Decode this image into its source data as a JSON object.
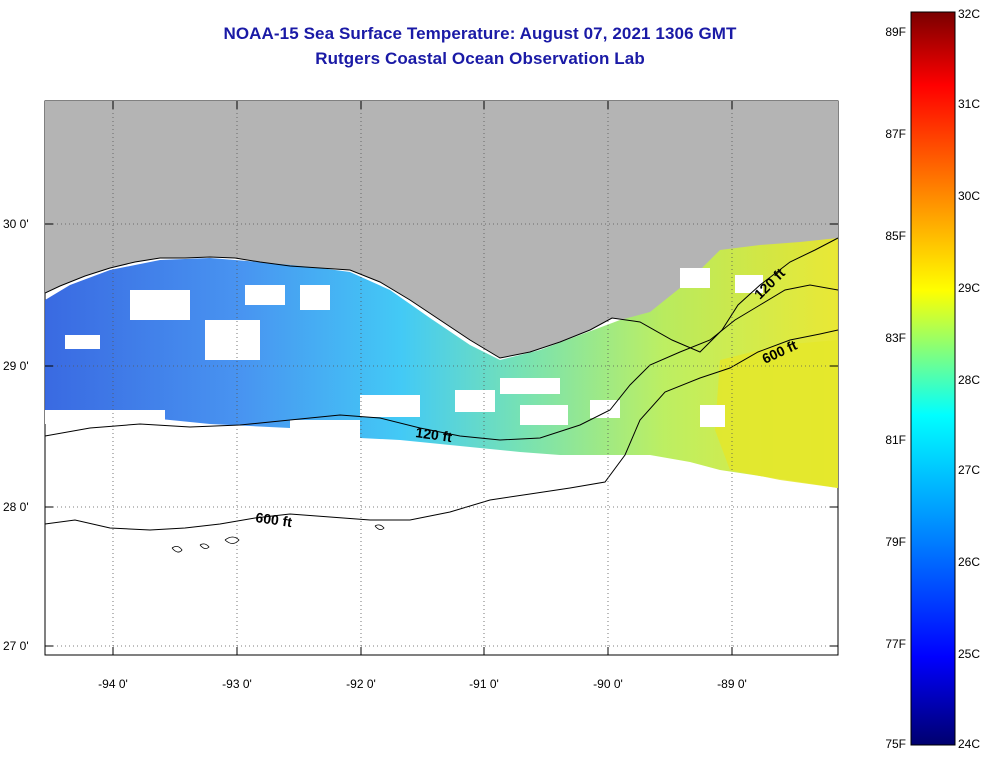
{
  "title": {
    "line1": "NOAA-15 Sea Surface Temperature:  August 07, 2021 1306 GMT",
    "line2": "Rutgers Coastal Ocean Observation Lab"
  },
  "map": {
    "lon_ticks": [
      "-94 0'",
      "-93 0'",
      "-92 0'",
      "-91 0'",
      "-90 0'",
      "-89 0'"
    ],
    "lat_ticks": [
      "30 0'",
      "29 0'",
      "28 0'",
      "27 0'"
    ],
    "contours": [
      {
        "label": "120 ft"
      },
      {
        "label": "120 ft"
      },
      {
        "label": "600 ft"
      },
      {
        "label": "600 ft"
      }
    ],
    "colors": {
      "land": "#b4b4b4",
      "ocean_nodata": "#ffffff",
      "coast": "#000000"
    }
  },
  "colorbar": {
    "celsius": [
      "32C",
      "31C",
      "30C",
      "29C",
      "28C",
      "27C",
      "26C",
      "25C",
      "24C"
    ],
    "fahrenheit": [
      "89F",
      "87F",
      "85F",
      "83F",
      "81F",
      "79F",
      "77F",
      "75F"
    ],
    "colors": [
      "#00006e",
      "#0000ff",
      "#0080ff",
      "#00ffff",
      "#ffff00",
      "#ff8000",
      "#ff0000",
      "#7a0000"
    ]
  }
}
